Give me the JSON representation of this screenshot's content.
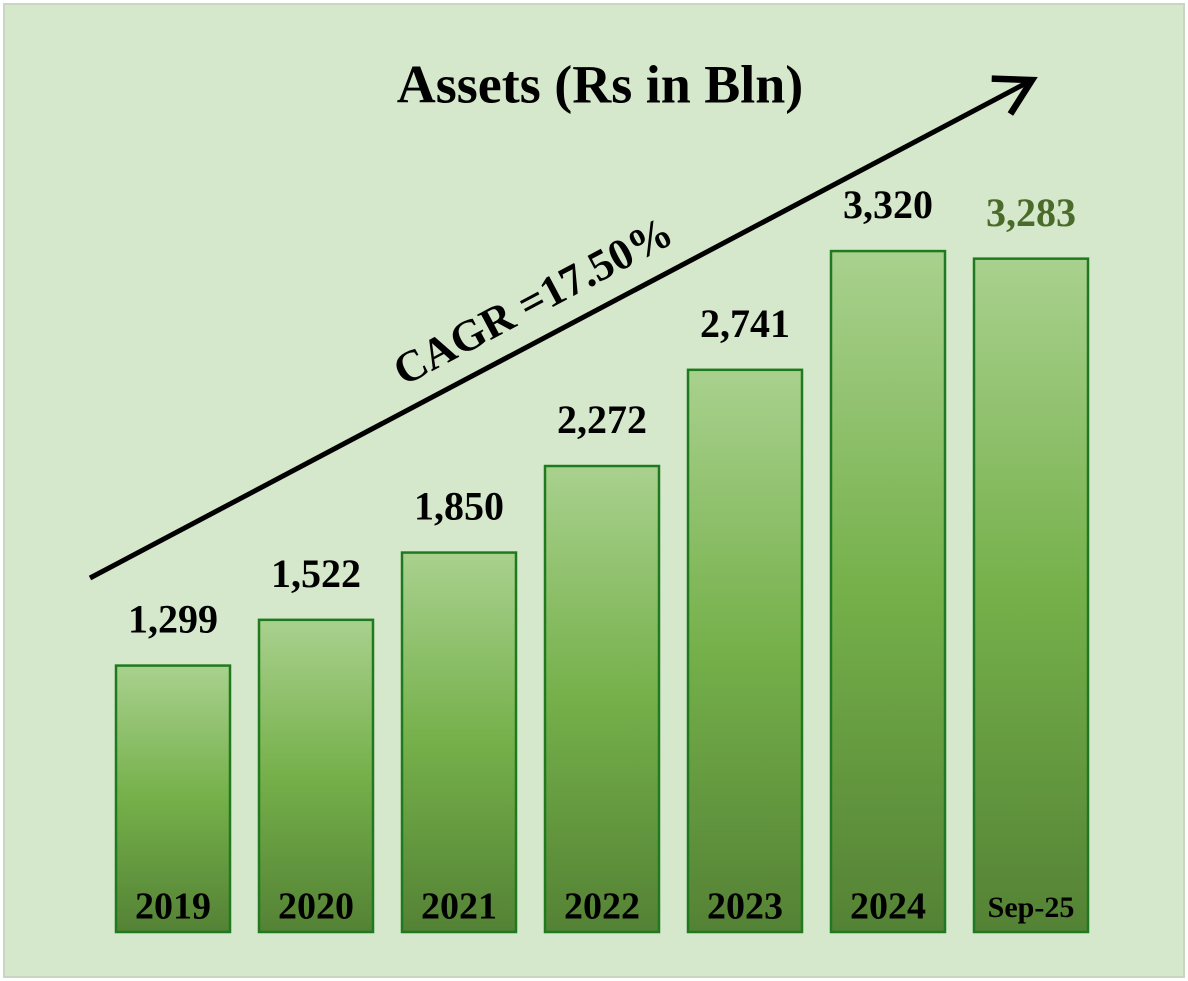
{
  "chart_data": {
    "type": "bar",
    "title": "Assets (Rs in Bln)",
    "annotation": "CAGR =17.50%",
    "categories": [
      "2019",
      "2020",
      "2021",
      "2022",
      "2023",
      "2024",
      "Sep-25"
    ],
    "values": [
      1299,
      1522,
      1850,
      2272,
      2741,
      3320,
      3283
    ],
    "value_labels": [
      "1,299",
      "1,522",
      "1,850",
      "2,272",
      "2,741",
      "3,320",
      "3,283"
    ],
    "value_label_colors": [
      "#000000",
      "#000000",
      "#000000",
      "#000000",
      "#000000",
      "#000000",
      "#4a6b2a"
    ],
    "color": "#70ad47"
  }
}
